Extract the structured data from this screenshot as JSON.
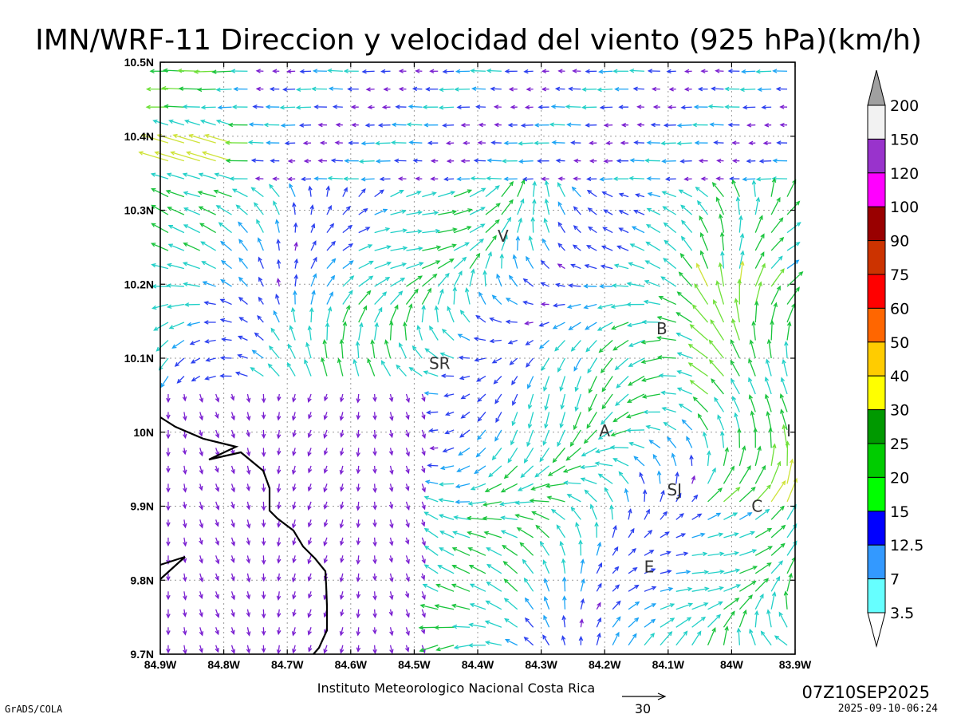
{
  "title": "IMN/WRF-11 Direccion y velocidad del viento (925 hPa)(km/h)",
  "map": {
    "lon_range": [
      -84.9,
      -83.9
    ],
    "lat_range": [
      9.7,
      10.5
    ],
    "x_ticks": [
      "84.9W",
      "84.8W",
      "84.7W",
      "84.6W",
      "84.5W",
      "84.4W",
      "84.3W",
      "84.2W",
      "84.1W",
      "84W",
      "83.9W"
    ],
    "y_ticks": [
      "10.5N",
      "10.4N",
      "10.3N",
      "10.2N",
      "10.1N",
      "10N",
      "9.9N",
      "9.8N",
      "9.7N"
    ],
    "grid": "dotted",
    "cities": [
      {
        "label": "V",
        "lon": -84.36,
        "lat": 10.265
      },
      {
        "label": "SR",
        "lon": -84.46,
        "lat": 10.093
      },
      {
        "label": "B",
        "lon": -84.11,
        "lat": 10.14
      },
      {
        "label": "A",
        "lon": -84.2,
        "lat": 10.002
      },
      {
        "label": "SJ",
        "lon": -84.09,
        "lat": 9.922
      },
      {
        "label": "C",
        "lon": -83.96,
        "lat": 9.9
      },
      {
        "label": "E",
        "lon": -84.13,
        "lat": 9.818
      },
      {
        "label": "I",
        "lon": -83.91,
        "lat": 10.002
      }
    ]
  },
  "colorbar": {
    "labels": [
      "200",
      "150",
      "120",
      "100",
      "90",
      "75",
      "60",
      "50",
      "40",
      "30",
      "25",
      "20",
      "15",
      "12.5",
      "7",
      "3.5"
    ],
    "colors": [
      "#a0a0a0",
      "#f2f2f2",
      "#9933cc",
      "#ff00ff",
      "#990000",
      "#cc3300",
      "#ff0000",
      "#ff6600",
      "#ffcc00",
      "#ffff00",
      "#009900",
      "#00cc00",
      "#00ff00",
      "#0000ff",
      "#3399ff",
      "#66ffff"
    ]
  },
  "reference_vector": "30",
  "footer": {
    "institution": "Instituto Meteorologico Nacional Costa Rica",
    "valid_time": "07Z10SEP2025",
    "issue_time": "2025-09-10-06:24",
    "software": "GrADS/COLA"
  }
}
